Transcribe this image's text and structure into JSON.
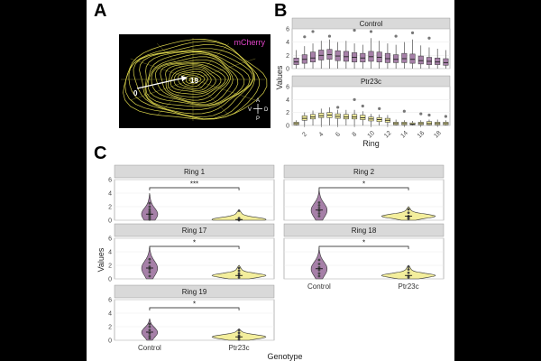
{
  "figure": {
    "panel_a": {
      "letter": "A",
      "channel_label": "mCherry",
      "ring_start": "0",
      "ring_end": "19",
      "axis_labels": {
        "top": "A",
        "bottom": "P",
        "left": "V",
        "right": "D"
      }
    },
    "panel_b": {
      "letter": "B"
    },
    "panel_c": {
      "letter": "C"
    }
  },
  "colors": {
    "control": "#a680a8",
    "ptr23c": "#f3ee9c",
    "mcherry": "#e044c8",
    "ring": "#d9d24a",
    "strip": "#d9d9d9"
  },
  "chart_data": [
    {
      "type": "box",
      "id": "panel_b",
      "xlabel": "Ring",
      "ylabel": "Values",
      "ylim": [
        0,
        6
      ],
      "yticks": [
        0,
        2,
        4,
        6
      ],
      "xticks": [
        "2",
        "4",
        "6",
        "8",
        "10",
        "12",
        "14",
        "16",
        "18"
      ],
      "facets": [
        {
          "strip": "Control",
          "fill": "control",
          "rings": [
            1,
            2,
            3,
            4,
            5,
            6,
            7,
            8,
            9,
            10,
            11,
            12,
            13,
            14,
            15,
            16,
            17,
            18,
            19
          ],
          "medians": [
            1.0,
            1.4,
            1.6,
            2.0,
            2.1,
            1.9,
            1.8,
            1.7,
            1.6,
            1.8,
            1.7,
            1.5,
            1.4,
            1.5,
            1.4,
            1.2,
            1.1,
            1.0,
            0.9
          ],
          "q1": [
            0.6,
            0.8,
            1.0,
            1.3,
            1.4,
            1.2,
            1.1,
            1.0,
            1.0,
            1.1,
            1.0,
            0.9,
            0.9,
            0.9,
            0.8,
            0.7,
            0.6,
            0.6,
            0.5
          ],
          "q3": [
            1.6,
            2.1,
            2.5,
            2.8,
            2.9,
            2.7,
            2.6,
            2.4,
            2.3,
            2.6,
            2.5,
            2.3,
            2.1,
            2.3,
            2.2,
            1.9,
            1.7,
            1.6,
            1.5
          ],
          "whisker_high": [
            2.8,
            3.4,
            3.8,
            4.2,
            4.4,
            4.0,
            4.2,
            3.8,
            3.6,
            4.6,
            4.2,
            3.8,
            3.6,
            4.0,
            4.4,
            3.5,
            3.2,
            3.0,
            2.8
          ],
          "outliers": [
            [
              2,
              4.8
            ],
            [
              3,
              5.6
            ],
            [
              5,
              4.9
            ],
            [
              8,
              5.8
            ],
            [
              10,
              5.6
            ],
            [
              13,
              4.9
            ],
            [
              15,
              5.4
            ],
            [
              17,
              4.6
            ]
          ]
        },
        {
          "strip": "Ptr23c",
          "fill": "ptr23c",
          "rings": [
            1,
            2,
            3,
            4,
            5,
            6,
            7,
            8,
            9,
            10,
            11,
            12,
            13,
            14,
            15,
            16,
            17,
            18,
            19
          ],
          "medians": [
            0.3,
            1.1,
            1.3,
            1.5,
            1.6,
            1.4,
            1.3,
            1.3,
            1.2,
            1.0,
            0.9,
            0.8,
            0.3,
            0.3,
            0.2,
            0.3,
            0.3,
            0.3,
            0.3
          ],
          "q1": [
            0.1,
            0.8,
            1.0,
            1.2,
            1.2,
            1.1,
            1.0,
            1.0,
            0.9,
            0.7,
            0.6,
            0.5,
            0.1,
            0.1,
            0.1,
            0.1,
            0.1,
            0.1,
            0.1
          ],
          "q3": [
            0.5,
            1.5,
            1.7,
            1.9,
            2.0,
            1.8,
            1.7,
            1.7,
            1.6,
            1.3,
            1.2,
            1.1,
            0.5,
            0.5,
            0.4,
            0.5,
            0.6,
            0.5,
            0.5
          ],
          "whisker_high": [
            0.8,
            2.0,
            2.3,
            2.6,
            2.8,
            2.4,
            2.4,
            2.4,
            2.2,
            1.8,
            1.7,
            1.6,
            0.9,
            0.8,
            0.7,
            0.8,
            0.9,
            0.9,
            0.8
          ],
          "outliers": [
            [
              6,
              2.8
            ],
            [
              8,
              4.0
            ],
            [
              9,
              3.0
            ],
            [
              11,
              2.6
            ],
            [
              14,
              2.2
            ],
            [
              16,
              1.8
            ],
            [
              17,
              1.6
            ],
            [
              19,
              1.4
            ]
          ]
        }
      ]
    },
    {
      "type": "violin",
      "id": "panel_c",
      "xlabel": "Genotype",
      "ylabel": "Values",
      "ylim": [
        0,
        6
      ],
      "yticks": [
        0,
        2,
        4,
        6
      ],
      "categories": [
        "Control",
        "Ptr23c"
      ],
      "facets": [
        {
          "strip": "Ring  1",
          "significance": "***",
          "control": {
            "max": 4.0,
            "median": 0.9,
            "points": [
              0.1,
              0.3,
              0.5,
              0.7,
              0.9,
              1.1,
              1.3,
              1.6,
              2.0,
              2.5
            ]
          },
          "ptr23c": {
            "max": 1.5,
            "median": 0.1,
            "points": [
              0.0,
              0.1,
              0.3,
              1.4
            ]
          }
        },
        {
          "strip": "Ring  2",
          "significance": "*",
          "control": {
            "max": 4.5,
            "median": 1.5,
            "points": [
              0.6,
              1.0,
              1.4,
              1.8,
              2.2,
              2.6
            ]
          },
          "ptr23c": {
            "max": 2.0,
            "median": 0.6,
            "points": [
              0.2,
              0.4,
              0.6,
              1.1,
              1.6
            ]
          }
        },
        {
          "strip": "Ring 17",
          "significance": "*",
          "control": {
            "max": 4.7,
            "median": 1.6,
            "points": [
              0.4,
              1.0,
              1.4,
              1.8,
              2.4,
              2.9
            ]
          },
          "ptr23c": {
            "max": 2.0,
            "median": 0.5,
            "points": [
              0.2,
              0.5,
              0.8,
              1.2,
              1.6
            ]
          }
        },
        {
          "strip": "Ring 18",
          "significance": "*",
          "control": {
            "max": 4.5,
            "median": 1.5,
            "points": [
              0.4,
              0.8,
              1.3,
              1.7,
              2.2,
              2.8
            ]
          },
          "ptr23c": {
            "max": 2.0,
            "median": 0.5,
            "points": [
              0.2,
              0.4,
              0.9,
              1.4,
              1.8
            ]
          }
        },
        {
          "strip": "Ring 19",
          "significance": "*",
          "control": {
            "max": 3.2,
            "median": 1.2,
            "points": [
              0.3,
              0.6,
              1.0,
              1.5,
              2.0,
              2.4
            ]
          },
          "ptr23c": {
            "max": 1.7,
            "median": 0.5,
            "points": [
              0.1,
              0.4,
              0.7,
              1.1,
              1.5
            ]
          }
        }
      ]
    }
  ]
}
